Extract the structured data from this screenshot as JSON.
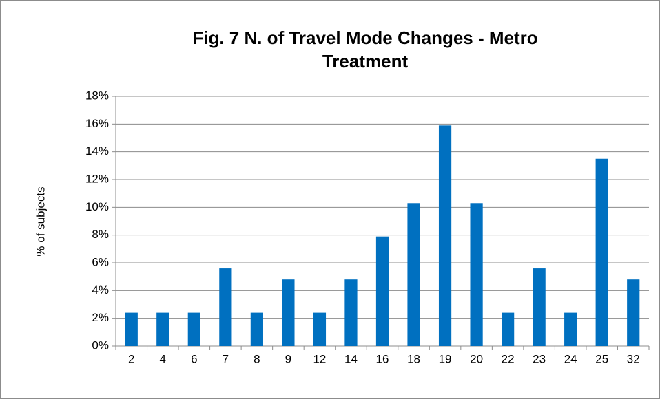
{
  "chart_data": {
    "type": "bar",
    "title": "Fig. 7 N. of Travel Mode Changes - Metro Treatment",
    "y_label": "% of subjects",
    "categories": [
      "2",
      "4",
      "6",
      "7",
      "8",
      "9",
      "12",
      "14",
      "16",
      "18",
      "19",
      "20",
      "22",
      "23",
      "24",
      "25",
      "32"
    ],
    "values": [
      2.4,
      2.4,
      2.4,
      5.6,
      2.4,
      4.8,
      2.4,
      4.8,
      7.9,
      10.3,
      15.9,
      10.3,
      2.4,
      5.6,
      2.4,
      13.5,
      4.8
    ],
    "color": "#0070c0",
    "ylim": [
      0,
      18
    ],
    "yticks": [
      {
        "value": 0,
        "label": "0%"
      },
      {
        "value": 2,
        "label": "2%"
      },
      {
        "value": 4,
        "label": "4%"
      },
      {
        "value": 6,
        "label": "6%"
      },
      {
        "value": 8,
        "label": "8%"
      },
      {
        "value": 10,
        "label": "10%"
      },
      {
        "value": 12,
        "label": "12%"
      },
      {
        "value": 14,
        "label": "14%"
      },
      {
        "value": 16,
        "label": "16%"
      },
      {
        "value": 18,
        "label": "18%"
      }
    ],
    "grid": true
  }
}
